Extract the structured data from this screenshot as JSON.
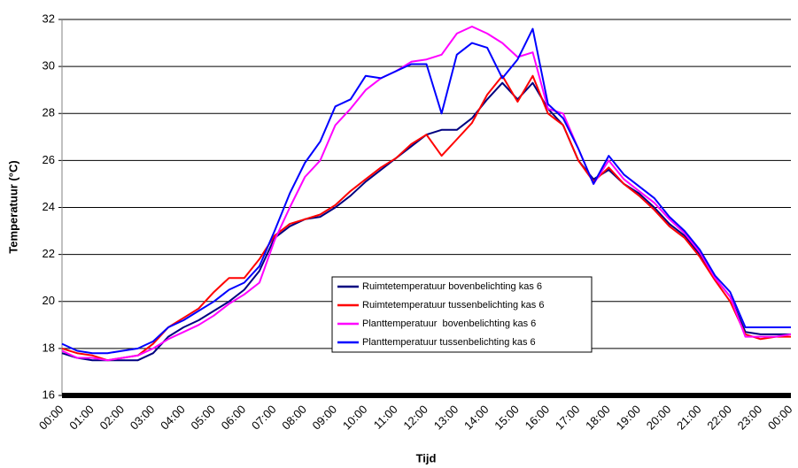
{
  "chart_data": {
    "type": "line",
    "y_label": "Temperatuur (°C)",
    "x_label": "Tijd",
    "categories": [
      "00:00",
      null,
      "01:00",
      null,
      "02:00",
      null,
      "03:00",
      null,
      "04:00",
      null,
      "05:00",
      null,
      "06:00",
      null,
      "07:00",
      null,
      "08:00",
      null,
      "09:00",
      null,
      "10:00",
      null,
      "11:00",
      null,
      "12:00",
      null,
      "13:00",
      null,
      "14:00",
      null,
      "15:00",
      null,
      "16:00",
      null,
      "17:00",
      null,
      "18:00",
      null,
      "19:00",
      null,
      "20:00",
      null,
      "21:00",
      null,
      "22:00",
      null,
      "23:00",
      null,
      "00:00"
    ],
    "ylim": [
      16,
      32
    ],
    "yticks": [
      16,
      18,
      20,
      22,
      24,
      26,
      28,
      30,
      32
    ],
    "grid": true,
    "series": [
      {
        "name": "Ruimtetemperatuur bovenbelichting kas 6",
        "color": "#000080",
        "values": [
          17.8,
          17.6,
          17.5,
          17.5,
          17.5,
          17.5,
          17.8,
          18.5,
          18.9,
          19.2,
          19.6,
          20.0,
          20.5,
          21.3,
          22.7,
          23.2,
          23.5,
          23.6,
          24.0,
          24.5,
          25.1,
          25.6,
          26.1,
          26.6,
          27.1,
          27.3,
          27.3,
          27.8,
          28.6,
          29.3,
          28.6,
          29.3,
          28.2,
          27.5,
          26.0,
          25.2,
          25.6,
          25.0,
          24.6,
          24.0,
          23.3,
          22.8,
          22.0,
          21.0,
          20.2,
          18.7,
          18.6,
          18.6,
          18.6
        ]
      },
      {
        "name": "Ruimtetemperatuur tussenbelichting kas 6",
        "color": "#ff0000",
        "values": [
          18.0,
          17.8,
          17.7,
          17.5,
          17.6,
          17.7,
          18.2,
          18.9,
          19.3,
          19.7,
          20.4,
          21.0,
          21.0,
          21.8,
          22.8,
          23.3,
          23.5,
          23.7,
          24.1,
          24.7,
          25.2,
          25.7,
          26.1,
          26.7,
          27.1,
          26.2,
          26.9,
          27.6,
          28.8,
          29.6,
          28.5,
          29.6,
          28.0,
          27.5,
          26.0,
          25.1,
          25.7,
          25.0,
          24.5,
          23.9,
          23.2,
          22.7,
          21.9,
          20.9,
          20.0,
          18.6,
          18.4,
          18.5,
          18.5
        ]
      },
      {
        "name": "Planttemperatuur  bovenbelichting kas 6",
        "color": "#ff00ff",
        "values": [
          17.9,
          17.6,
          17.6,
          17.5,
          17.6,
          17.7,
          18.0,
          18.4,
          18.7,
          19.0,
          19.4,
          19.9,
          20.3,
          20.8,
          22.6,
          24.0,
          25.3,
          26.0,
          27.5,
          28.2,
          29.0,
          29.5,
          29.8,
          30.2,
          30.3,
          30.5,
          31.4,
          31.7,
          31.4,
          31.0,
          30.4,
          30.6,
          28.2,
          28.0,
          26.5,
          25.0,
          26.0,
          25.2,
          24.7,
          24.2,
          23.5,
          22.9,
          22.1,
          21.0,
          20.2,
          18.5,
          18.5,
          18.5,
          18.6
        ]
      },
      {
        "name": "Planttemperatuur tussenbelichting kas 6",
        "color": "#0000ff",
        "values": [
          18.2,
          17.9,
          17.8,
          17.8,
          17.9,
          18.0,
          18.3,
          18.9,
          19.2,
          19.6,
          20.0,
          20.5,
          20.8,
          21.5,
          23.0,
          24.6,
          25.9,
          26.8,
          28.3,
          28.6,
          29.6,
          29.5,
          29.8,
          30.1,
          30.1,
          28.0,
          30.5,
          31.0,
          30.8,
          29.5,
          30.3,
          31.6,
          28.4,
          27.8,
          26.5,
          25.0,
          26.2,
          25.4,
          24.9,
          24.4,
          23.6,
          23.0,
          22.2,
          21.1,
          20.4,
          18.9,
          18.9,
          18.9,
          18.9
        ]
      }
    ]
  }
}
